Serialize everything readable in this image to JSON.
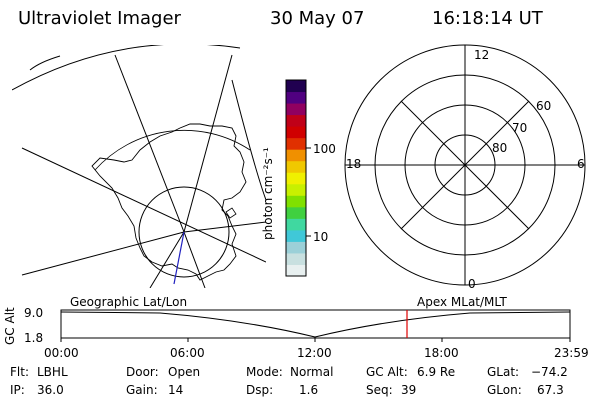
{
  "header": {
    "instrument": "Ultraviolet Imager",
    "date": "30 May 07",
    "time": "16:18:14 UT"
  },
  "colorbar": {
    "unit_label": "photon cm⁻²s⁻¹",
    "ticks": [
      "100",
      "10"
    ],
    "colors": [
      "#e8f0f0",
      "#c8e0e0",
      "#9bd0d8",
      "#40c8d8",
      "#40d8a0",
      "#40d040",
      "#80e000",
      "#c8f000",
      "#f0f000",
      "#f0c800",
      "#f09000",
      "#e03000",
      "#d00000",
      "#c00018",
      "#900060",
      "#500080",
      "#200050"
    ]
  },
  "polar_plot": {
    "mlt_labels": [
      "12",
      "18",
      "6",
      "0"
    ],
    "lat_labels": [
      "60",
      "70",
      "80"
    ]
  },
  "timeline": {
    "left_label": "Geographic Lat/Lon",
    "right_label": "Apex MLat/MLT",
    "axis_title": "GC Alt",
    "y_ticks": [
      "9.0",
      "1.8"
    ],
    "x_ticks": [
      "00:00",
      "06:00",
      "12:00",
      "18:00",
      "23:59"
    ],
    "marker_color": "#e00000"
  },
  "footer": {
    "flt_label": "Flt:",
    "flt_value": "LBHL",
    "ip_label": "IP:",
    "ip_value": "36.0",
    "door_label": "Door:",
    "door_value": "Open",
    "gain_label": "Gain:",
    "gain_value": "14",
    "mode_label": "Mode:",
    "mode_value": "Normal",
    "dsp_label": "Dsp:",
    "dsp_value": "1.6",
    "gcalt_label": "GC Alt:",
    "gcalt_value": "6.9 Re",
    "seq_label": "Seq:",
    "seq_value": "39",
    "glat_label": "GLat:",
    "glat_value": "−74.2",
    "glon_label": "GLon:",
    "glon_value": "67.3"
  }
}
